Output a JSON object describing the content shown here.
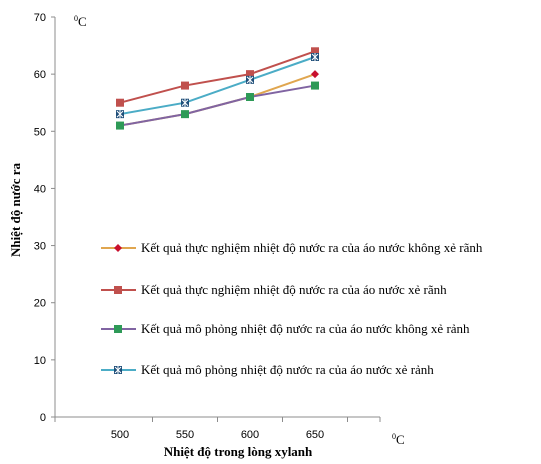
{
  "chart_data": {
    "type": "line",
    "x": [
      500,
      550,
      600,
      650
    ],
    "xlabel": "Nhiệt độ trong lòng xylanh",
    "ylabel": "Nhiệt độ nước ra",
    "x_unit": "0C",
    "y_unit": "0C",
    "xlim": [
      450,
      700
    ],
    "ylim": [
      0,
      70
    ],
    "y_ticks": [
      0,
      10,
      20,
      30,
      40,
      50,
      60,
      70
    ],
    "grid": false,
    "legend_position": "right",
    "series": [
      {
        "name": "Kết quả thực nghiệm nhiệt độ nước ra của áo nước không xẻ rãnh",
        "color": "#e0a64f",
        "marker": "diamond",
        "marker_color": "#c8102e",
        "values": [
          51,
          53,
          56,
          60
        ]
      },
      {
        "name": "Kết quả thực nghiệm nhiệt độ nước ra của áo nước xẻ rãnh",
        "color": "#c0504d",
        "marker": "square",
        "marker_color": "#c0504d",
        "values": [
          55,
          58,
          60,
          64
        ]
      },
      {
        "name": "Kết quả mô phỏng nhiệt độ nước ra của áo nước không xẻ rảnh",
        "color": "#8064a2",
        "marker": "square",
        "marker_color": "#2e9a57",
        "values": [
          51,
          53,
          56,
          58
        ]
      },
      {
        "name": "Kết quả mô phỏng nhiệt độ nước ra của áo nước xẻ rảnh",
        "color": "#4bacc6",
        "marker": "star-square",
        "marker_color": "#1f4e79",
        "values": [
          53,
          55,
          59,
          63
        ]
      }
    ]
  }
}
